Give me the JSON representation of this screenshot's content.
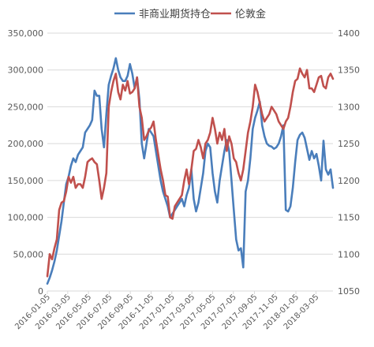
{
  "chart_data": {
    "type": "line",
    "x_tick_labels": [
      "2016-01-05",
      "2016-03-05",
      "2016-05-05",
      "2016-07-05",
      "2016-09-05",
      "2016-11-05",
      "2017-01-05",
      "2017-03-05",
      "2017-05-05",
      "2017-07-05",
      "2017-09-05",
      "2017-11-05",
      "2018-01-05",
      "2018-03-05"
    ],
    "x_range": [
      "2016-01-05",
      "2018-04-24"
    ],
    "y_left": {
      "ylim": [
        0,
        350000
      ],
      "ticks": [
        "0",
        "50,000",
        "100,000",
        "150,000",
        "200,000",
        "250,000",
        "300,000",
        "350,000"
      ]
    },
    "y_right": {
      "ylim": [
        1050,
        1400
      ],
      "ticks": [
        "1050",
        "1100",
        "1150",
        "1200",
        "1250",
        "1300",
        "1350",
        "1400"
      ]
    },
    "grid": true,
    "legend": {
      "placement": "top"
    },
    "series": [
      {
        "name": "非商业期货持仓",
        "axis": "left",
        "color": "#4a7ebb",
        "values": [
          10000,
          18000,
          28000,
          40000,
          55000,
          75000,
          95000,
          120000,
          145000,
          155000,
          170000,
          180000,
          175000,
          185000,
          190000,
          195000,
          215000,
          220000,
          225000,
          232000,
          272000,
          265000,
          265000,
          220000,
          195000,
          240000,
          280000,
          292000,
          302000,
          316000,
          300000,
          290000,
          285000,
          285000,
          292000,
          308000,
          295000,
          275000,
          290000,
          260000,
          200000,
          180000,
          200000,
          220000,
          215000,
          210000,
          190000,
          170000,
          150000,
          135000,
          125000,
          115000,
          100000,
          105000,
          110000,
          115000,
          120000,
          125000,
          115000,
          130000,
          140000,
          165000,
          125000,
          108000,
          120000,
          140000,
          160000,
          190000,
          200000,
          195000,
          160000,
          135000,
          120000,
          150000,
          170000,
          190000,
          205000,
          190000,
          150000,
          110000,
          70000,
          55000,
          58000,
          32000,
          135000,
          150000,
          180000,
          220000,
          235000,
          245000,
          257000,
          225000,
          210000,
          200000,
          197000,
          196000,
          193000,
          195000,
          200000,
          210000,
          225000,
          110000,
          108000,
          115000,
          140000,
          175000,
          205000,
          212000,
          215000,
          208000,
          193000,
          178000,
          190000,
          180000,
          186000,
          170000,
          150000,
          204000,
          165000,
          158000,
          165000,
          140000
        ]
      },
      {
        "name": "伦敦金",
        "axis": "right",
        "color": "#c0504d",
        "values": [
          1070,
          1100,
          1093,
          1108,
          1120,
          1160,
          1170,
          1172,
          1185,
          1205,
          1197,
          1205,
          1190,
          1195,
          1195,
          1190,
          1205,
          1225,
          1228,
          1230,
          1225,
          1222,
          1200,
          1175,
          1190,
          1210,
          1300,
          1320,
          1335,
          1345,
          1320,
          1310,
          1330,
          1322,
          1335,
          1318,
          1320,
          1325,
          1340,
          1300,
          1285,
          1255,
          1260,
          1268,
          1272,
          1280,
          1255,
          1235,
          1215,
          1200,
          1180,
          1178,
          1150,
          1148,
          1165,
          1170,
          1175,
          1180,
          1200,
          1215,
          1195,
          1215,
          1240,
          1243,
          1255,
          1245,
          1230,
          1250,
          1255,
          1265,
          1285,
          1270,
          1250,
          1265,
          1255,
          1270,
          1240,
          1260,
          1250,
          1230,
          1225,
          1210,
          1200,
          1215,
          1240,
          1265,
          1280,
          1300,
          1330,
          1320,
          1305,
          1290,
          1280,
          1285,
          1290,
          1300,
          1295,
          1290,
          1280,
          1275,
          1270,
          1280,
          1285,
          1300,
          1320,
          1335,
          1338,
          1352,
          1345,
          1340,
          1350,
          1325,
          1325,
          1320,
          1330,
          1340,
          1342,
          1328,
          1325,
          1340,
          1345,
          1338
        ]
      }
    ]
  }
}
